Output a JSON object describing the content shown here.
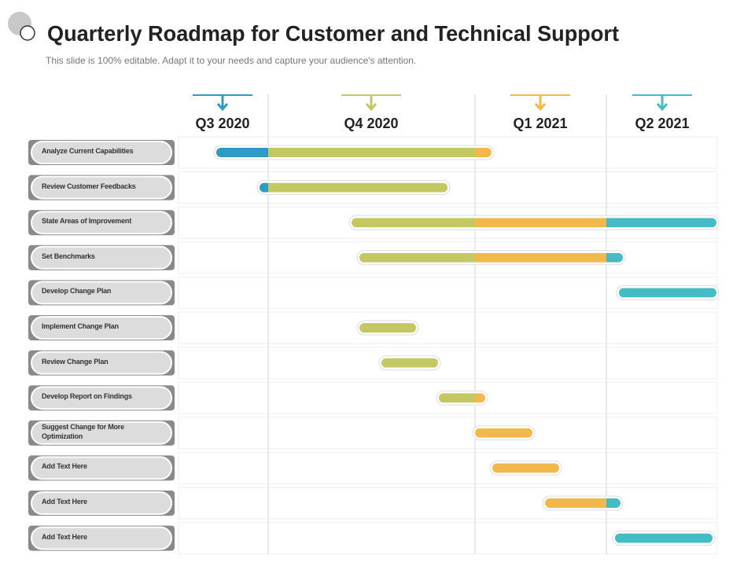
{
  "header": {
    "title": "Quarterly Roadmap for Customer and Technical Support",
    "subtitle": "This slide is 100% editable. Adapt it to your needs and capture your audience's attention."
  },
  "timeline": {
    "quarters": [
      "Q3 2020",
      "Q4 2020",
      "Q1 2021",
      "Q2 2021"
    ]
  },
  "tasks": [
    "Analyze Current Capabilities",
    "Review Customer Feedbacks",
    "State Areas of Improvement",
    "Set Benchmarks",
    "Develop Change Plan",
    "Implement Change Plan",
    "Review Change Plan",
    "Develop Report on Findings",
    "Suggest Change for More Optimization",
    "Add Text Here",
    "Add Text Here",
    "Add Text Here"
  ]
}
